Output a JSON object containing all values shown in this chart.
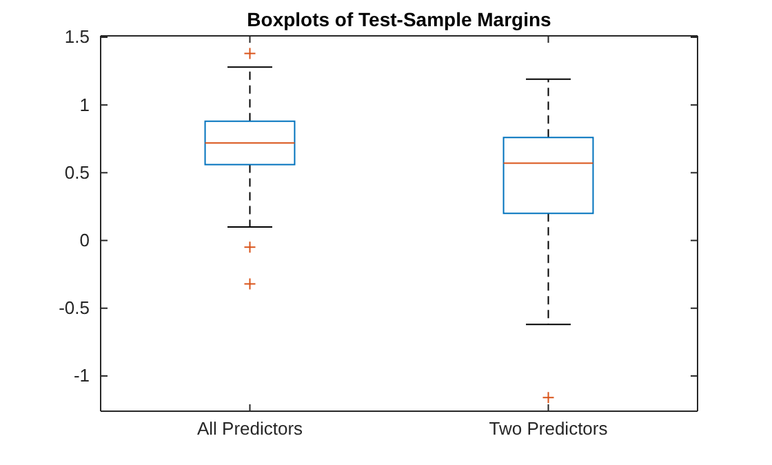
{
  "chart_data": {
    "type": "box",
    "title": "Boxplots of Test-Sample Margins",
    "categories": [
      "All Predictors",
      "Two Predictors"
    ],
    "boxes": [
      {
        "low": 0.1,
        "q1": 0.56,
        "median": 0.72,
        "q3": 0.88,
        "high": 1.28,
        "outliers": [
          1.38,
          -0.05,
          -0.32
        ]
      },
      {
        "low": -0.62,
        "q1": 0.2,
        "median": 0.57,
        "q3": 0.76,
        "high": 1.19,
        "outliers": [
          -1.16
        ]
      }
    ],
    "color": "#0072bd",
    "marker": "cross",
    "grid": false,
    "ylim": [
      -1.26,
      1.51
    ],
    "yticks": [
      -1,
      -0.5,
      0,
      0.5,
      1,
      1.5
    ]
  }
}
